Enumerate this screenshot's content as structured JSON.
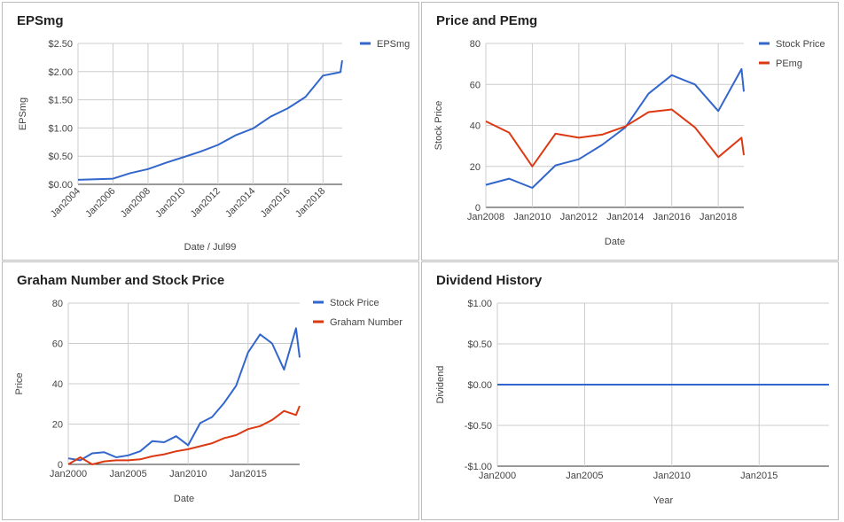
{
  "chart_data": [
    {
      "id": "eps",
      "type": "line",
      "title": "EPSmg",
      "xlabel": "Date / Jul99",
      "ylabel": "EPSmg",
      "xlim": [
        2004,
        2019.1
      ],
      "ylim": [
        0,
        2.5
      ],
      "yticks": [
        0,
        0.5,
        1.0,
        1.5,
        2.0,
        2.5
      ],
      "ytick_labels": [
        "$0.00",
        "$0.50",
        "$1.00",
        "$1.50",
        "$2.00",
        "$2.50"
      ],
      "xticks": [
        2004,
        2006,
        2008,
        2010,
        2012,
        2014,
        2016,
        2018
      ],
      "xtick_labels": [
        "Jan2004",
        "Jan2006",
        "Jan2008",
        "Jan2010",
        "Jan2012",
        "Jan2014",
        "Jan2016",
        "Jan2018"
      ],
      "xtick_rotate": true,
      "grid": true,
      "legend": "top-right",
      "series": [
        {
          "name": "EPSmg",
          "color": "#3366cc",
          "x": [
            2004,
            2005,
            2006,
            2007,
            2008,
            2009,
            2010,
            2011,
            2012,
            2013,
            2014,
            2015,
            2016,
            2017,
            2018,
            2019,
            2019.1
          ],
          "y": [
            0.08,
            0.09,
            0.1,
            0.2,
            0.27,
            0.38,
            0.48,
            0.58,
            0.7,
            0.87,
            0.99,
            1.2,
            1.35,
            1.55,
            1.93,
            1.99,
            2.2
          ]
        }
      ]
    },
    {
      "id": "pe",
      "type": "line",
      "title": "Price and PEmg",
      "xlabel": "Date",
      "ylabel": "Stock Price",
      "xlim": [
        2008,
        2019.1
      ],
      "ylim": [
        0,
        80
      ],
      "yticks": [
        0,
        20,
        40,
        60,
        80
      ],
      "ytick_labels": [
        "0",
        "20",
        "40",
        "60",
        "80"
      ],
      "xticks": [
        2008,
        2010,
        2012,
        2014,
        2016,
        2018
      ],
      "xtick_labels": [
        "Jan2008",
        "Jan2010",
        "Jan2012",
        "Jan2014",
        "Jan2016",
        "Jan2018"
      ],
      "xtick_rotate": false,
      "grid": true,
      "legend": "top-right",
      "series": [
        {
          "name": "Stock Price",
          "color": "#3366cc",
          "x": [
            2008,
            2009,
            2010,
            2011,
            2012,
            2013,
            2014,
            2015,
            2016,
            2017,
            2018,
            2019,
            2019.1
          ],
          "y": [
            11,
            14,
            9.5,
            20.5,
            23.5,
            30.5,
            39,
            55.5,
            64.5,
            60,
            47,
            67.5,
            56.5
          ]
        },
        {
          "name": "PEmg",
          "color": "#dc3912",
          "x": [
            2008,
            2009,
            2010,
            2011,
            2012,
            2013,
            2014,
            2015,
            2016,
            2017,
            2018,
            2019,
            2019.1
          ],
          "y": [
            42,
            36.5,
            20,
            36,
            34,
            35.5,
            39.5,
            46.5,
            47.8,
            39,
            24.5,
            34,
            25.5
          ]
        }
      ]
    },
    {
      "id": "graham",
      "type": "line",
      "title": "Graham Number and Stock Price",
      "xlabel": "Date",
      "ylabel": "Price",
      "xlim": [
        2000,
        2019.3
      ],
      "ylim": [
        0,
        80
      ],
      "yticks": [
        0,
        20,
        40,
        60,
        80
      ],
      "ytick_labels": [
        "0",
        "20",
        "40",
        "60",
        "80"
      ],
      "xticks": [
        2000,
        2005,
        2010,
        2015
      ],
      "xtick_labels": [
        "Jan2000",
        "Jan2005",
        "Jan2010",
        "Jan2015"
      ],
      "xtick_rotate": false,
      "grid": true,
      "legend": "top-right",
      "series": [
        {
          "name": "Stock Price",
          "color": "#3366cc",
          "x": [
            2000,
            2001,
            2002,
            2003,
            2004,
            2005,
            2006,
            2007,
            2008,
            2009,
            2010,
            2011,
            2012,
            2013,
            2014,
            2015,
            2016,
            2017,
            2018,
            2019,
            2019.3
          ],
          "y": [
            3,
            2,
            5.5,
            6,
            3.5,
            4.5,
            6.5,
            11.5,
            11,
            14,
            9.5,
            20.5,
            23.5,
            30.5,
            39,
            55.5,
            64.5,
            60,
            47,
            67.5,
            53
          ]
        },
        {
          "name": "Graham Number",
          "color": "#dc3912",
          "x": [
            2000,
            2001,
            2002,
            2003,
            2004,
            2005,
            2006,
            2007,
            2008,
            2009,
            2010,
            2011,
            2012,
            2013,
            2014,
            2015,
            2016,
            2017,
            2018,
            2019,
            2019.3
          ],
          "y": [
            0,
            3.5,
            0,
            1.5,
            2,
            2,
            2.5,
            4,
            5,
            6.5,
            7.5,
            9,
            10.5,
            13,
            14.5,
            17.5,
            19,
            22,
            26.5,
            24.5,
            29
          ]
        }
      ]
    },
    {
      "id": "dividend",
      "type": "line",
      "title": "Dividend History",
      "xlabel": "Year",
      "ylabel": "Dividend",
      "xlim": [
        2000,
        2019
      ],
      "ylim": [
        -1,
        1
      ],
      "yticks": [
        -1,
        -0.5,
        0,
        0.5,
        1
      ],
      "ytick_labels": [
        "-$1.00",
        "-$0.50",
        "$0.00",
        "$0.50",
        "$1.00"
      ],
      "xticks": [
        2000,
        2005,
        2010,
        2015
      ],
      "xtick_labels": [
        "Jan2000",
        "Jan2005",
        "Jan2010",
        "Jan2015"
      ],
      "xtick_rotate": false,
      "grid": true,
      "legend": "none",
      "series": [
        {
          "name": "",
          "color": "#3366cc",
          "x": [
            2000,
            2019
          ],
          "y": [
            0,
            0
          ]
        }
      ]
    }
  ]
}
